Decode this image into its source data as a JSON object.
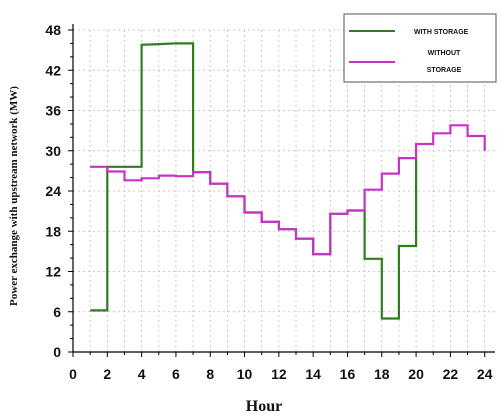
{
  "chart_data": {
    "type": "line",
    "title": "",
    "xlabel": "Hour",
    "ylabel": "Power exchange with upstream network (MW)",
    "xlim": [
      0,
      24.6
    ],
    "ylim": [
      0,
      48
    ],
    "xticks": [
      "0",
      "2",
      "4",
      "6",
      "8",
      "10",
      "12",
      "14",
      "16",
      "18",
      "20",
      "22",
      "24"
    ],
    "yticks": [
      "0",
      "6",
      "12",
      "18",
      "24",
      "30",
      "36",
      "42",
      "48"
    ],
    "grid": true,
    "legend_position": "top-right",
    "series": [
      {
        "name": "WITH STORAGE",
        "color": "#2e7d1e",
        "points": [
          [
            1,
            6.2
          ],
          [
            2,
            6.2
          ],
          [
            2,
            27.6
          ],
          [
            3,
            27.6
          ],
          [
            4,
            27.6
          ],
          [
            4,
            45.8
          ],
          [
            5,
            45.9
          ],
          [
            6,
            46.0
          ],
          [
            7,
            46.0
          ],
          [
            7,
            26.8
          ],
          [
            8,
            26.8
          ],
          [
            8,
            25.1
          ],
          [
            9,
            25.1
          ],
          [
            9,
            23.2
          ],
          [
            10,
            23.2
          ],
          [
            10,
            20.8
          ],
          [
            11,
            20.8
          ],
          [
            11,
            19.4
          ],
          [
            12,
            19.4
          ],
          [
            12,
            18.3
          ],
          [
            13,
            18.3
          ],
          [
            13,
            16.9
          ],
          [
            14,
            16.9
          ],
          [
            14,
            14.6
          ],
          [
            15,
            14.6
          ],
          [
            15,
            20.6
          ],
          [
            16,
            20.6
          ],
          [
            16,
            21.1
          ],
          [
            17,
            21.1
          ],
          [
            17,
            13.9
          ],
          [
            18,
            13.9
          ],
          [
            18,
            5.0
          ],
          [
            19,
            5.0
          ],
          [
            19,
            15.8
          ],
          [
            20,
            15.8
          ],
          [
            20,
            29.0
          ]
        ]
      },
      {
        "name": "WITHOUT STORAGE",
        "color": "#c832c8",
        "points": [
          [
            1,
            27.6
          ],
          [
            2,
            27.6
          ],
          [
            2,
            26.9
          ],
          [
            3,
            26.9
          ],
          [
            3,
            25.6
          ],
          [
            4,
            25.6
          ],
          [
            4,
            25.9
          ],
          [
            5,
            25.9
          ],
          [
            5,
            26.3
          ],
          [
            6,
            26.3
          ],
          [
            6,
            26.2
          ],
          [
            7,
            26.2
          ],
          [
            7,
            26.8
          ],
          [
            8,
            26.8
          ],
          [
            8,
            25.1
          ],
          [
            9,
            25.1
          ],
          [
            9,
            23.2
          ],
          [
            10,
            23.2
          ],
          [
            10,
            20.8
          ],
          [
            11,
            20.8
          ],
          [
            11,
            19.4
          ],
          [
            12,
            19.4
          ],
          [
            12,
            18.3
          ],
          [
            13,
            18.3
          ],
          [
            13,
            16.9
          ],
          [
            14,
            16.9
          ],
          [
            14,
            14.6
          ],
          [
            15,
            14.6
          ],
          [
            15,
            20.6
          ],
          [
            16,
            20.6
          ],
          [
            16,
            21.1
          ],
          [
            17,
            21.1
          ],
          [
            17,
            24.2
          ],
          [
            18,
            24.2
          ],
          [
            18,
            26.6
          ],
          [
            19,
            26.6
          ],
          [
            19,
            28.9
          ],
          [
            20,
            28.9
          ],
          [
            20,
            31.0
          ],
          [
            21,
            31.0
          ],
          [
            21,
            32.6
          ],
          [
            22,
            32.6
          ],
          [
            22,
            33.8
          ],
          [
            23,
            33.8
          ],
          [
            23,
            32.2
          ],
          [
            24,
            32.2
          ],
          [
            24,
            30.0
          ]
        ]
      }
    ]
  }
}
